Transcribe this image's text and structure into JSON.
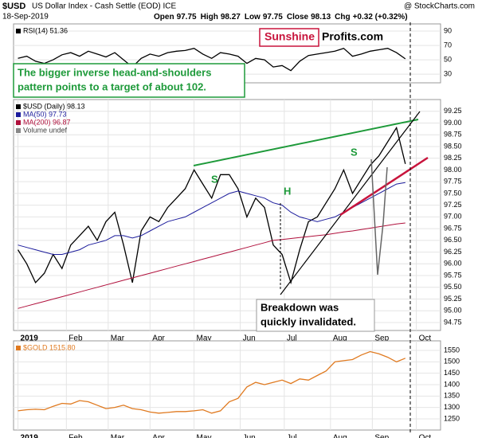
{
  "header": {
    "symbol": "$USD",
    "name": "US Dollar Index - Cash Settle (EOD) ICE",
    "source": "@ StockCharts.com",
    "date": "18-Sep-2019",
    "quote": [
      {
        "label": "Open",
        "value": 97.75
      },
      {
        "label": "High",
        "value": 98.27
      },
      {
        "label": "Low",
        "value": 97.75
      },
      {
        "label": "Close",
        "value": 98.13
      },
      {
        "label": "Chg",
        "value": "+0.32 (+0.32%)"
      }
    ]
  },
  "logo": [
    "Sunshine",
    "Profits.com"
  ],
  "callout": [
    "The bigger inverse head-and-shoulders",
    "pattern points to a target of about 102."
  ],
  "chart_data": [
    {
      "type": "line",
      "xlim": [
        -2,
        192
      ],
      "ylim": [
        18,
        100
      ],
      "yticks": [
        90,
        70,
        50,
        30
      ],
      "grid": true,
      "series": [
        {
          "name": "RSI(14) 51.36",
          "color": "#000000",
          "x": [
            0,
            4,
            8,
            12,
            16,
            20,
            24,
            28,
            32,
            36,
            40,
            44,
            48,
            52,
            56,
            60,
            64,
            68,
            72,
            76,
            80,
            84,
            88,
            92,
            96,
            100,
            104,
            108,
            112,
            116,
            120,
            124,
            128,
            132,
            136,
            140,
            144,
            148,
            152,
            156,
            160,
            164,
            168,
            172,
            176
          ],
          "values": [
            52,
            55,
            48,
            45,
            50,
            57,
            60,
            55,
            62,
            58,
            54,
            60,
            50,
            40,
            52,
            58,
            55,
            60,
            62,
            63,
            66,
            58,
            52,
            60,
            58,
            55,
            45,
            52,
            50,
            40,
            42,
            35,
            48,
            56,
            58,
            60,
            62,
            66,
            55,
            58,
            62,
            64,
            66,
            60,
            51.36
          ]
        }
      ]
    },
    {
      "type": "line",
      "xlim": [
        -2,
        192
      ],
      "ylim": [
        94.58,
        99.5
      ],
      "grid": true,
      "yticks": [
        94.75,
        {
          "value": 95,
          "label": "95.00"
        },
        95.25,
        {
          "value": 95.5,
          "label": "95.50"
        },
        95.75,
        {
          "value": 96,
          "label": "96.00"
        },
        96.25,
        {
          "value": 96.5,
          "label": "96.50"
        },
        96.75,
        {
          "value": 97,
          "label": "97.00"
        },
        97.25,
        {
          "value": 97.5,
          "label": "97.50"
        },
        97.75,
        {
          "value": 98,
          "label": "98.00"
        },
        98.25,
        {
          "value": 98.5,
          "label": "98.50"
        },
        98.75,
        {
          "value": 99,
          "label": "99.00"
        },
        99.25
      ],
      "xticks": [
        {
          "value": 0,
          "label": "2019"
        },
        {
          "value": 22,
          "label": "Feb"
        },
        {
          "value": 41,
          "label": "Mar"
        },
        {
          "value": 60,
          "label": "Apr"
        },
        {
          "value": 80,
          "label": "May"
        },
        {
          "value": 101,
          "label": "Jun"
        },
        {
          "value": 121,
          "label": "Jul"
        },
        {
          "value": 142,
          "label": "Aug"
        },
        {
          "value": 161,
          "label": "Sep"
        },
        {
          "value": 181,
          "label": "Oct"
        }
      ],
      "legend_extra": "Volume undef",
      "annotations": [
        "S",
        "H",
        "S",
        "Breakdown was",
        "quickly invalidated."
      ],
      "series": [
        {
          "name": "$USD (Daily) 98.13",
          "color": "#000000",
          "x": [
            0,
            4,
            8,
            12,
            16,
            20,
            24,
            28,
            32,
            36,
            40,
            44,
            48,
            52,
            56,
            60,
            64,
            68,
            72,
            76,
            80,
            84,
            88,
            92,
            96,
            100,
            104,
            108,
            112,
            116,
            120,
            124,
            128,
            132,
            136,
            140,
            144,
            148,
            152,
            156,
            160,
            164,
            168,
            172,
            176
          ],
          "values": [
            96.3,
            96.0,
            95.6,
            95.8,
            96.2,
            95.9,
            96.4,
            96.6,
            96.8,
            96.5,
            96.9,
            97.1,
            96.4,
            95.6,
            96.7,
            97.0,
            96.9,
            97.2,
            97.4,
            97.6,
            98.0,
            97.7,
            97.4,
            97.9,
            97.9,
            97.6,
            97.0,
            97.4,
            97.2,
            96.4,
            96.2,
            95.6,
            96.3,
            96.9,
            97.0,
            97.3,
            97.6,
            98.0,
            97.5,
            97.8,
            98.1,
            98.3,
            98.6,
            98.9,
            98.13
          ]
        },
        {
          "name": "MA(50) 97.73",
          "color": "#1c1c9c",
          "x": [
            0,
            4,
            8,
            12,
            16,
            20,
            24,
            28,
            32,
            36,
            40,
            44,
            48,
            52,
            56,
            60,
            64,
            68,
            72,
            76,
            80,
            84,
            88,
            92,
            96,
            100,
            104,
            108,
            112,
            116,
            120,
            124,
            128,
            132,
            136,
            140,
            144,
            148,
            152,
            156,
            160,
            164,
            168,
            172,
            176
          ],
          "values": [
            96.4,
            96.35,
            96.3,
            96.25,
            96.2,
            96.2,
            96.25,
            96.3,
            96.4,
            96.45,
            96.5,
            96.6,
            96.6,
            96.55,
            96.6,
            96.7,
            96.8,
            96.9,
            96.95,
            97.0,
            97.1,
            97.2,
            97.3,
            97.4,
            97.5,
            97.55,
            97.5,
            97.45,
            97.4,
            97.3,
            97.25,
            97.1,
            97.0,
            96.95,
            96.9,
            96.95,
            97.0,
            97.1,
            97.2,
            97.3,
            97.4,
            97.5,
            97.6,
            97.7,
            97.73
          ]
        },
        {
          "name": "MA(200) 96.87",
          "color": "#b0103c",
          "x": [
            0,
            4,
            8,
            12,
            16,
            20,
            24,
            28,
            32,
            36,
            40,
            44,
            48,
            52,
            56,
            60,
            64,
            68,
            72,
            76,
            80,
            84,
            88,
            92,
            96,
            100,
            104,
            108,
            112,
            116,
            120,
            124,
            128,
            132,
            136,
            140,
            144,
            148,
            152,
            156,
            160,
            164,
            168,
            172,
            176
          ],
          "values": [
            95.05,
            95.1,
            95.15,
            95.2,
            95.25,
            95.3,
            95.35,
            95.4,
            95.45,
            95.5,
            95.55,
            95.6,
            95.65,
            95.7,
            95.75,
            95.8,
            95.85,
            95.9,
            95.95,
            96.0,
            96.05,
            96.1,
            96.15,
            96.2,
            96.25,
            96.3,
            96.35,
            96.4,
            96.45,
            96.5,
            96.52,
            96.54,
            96.56,
            96.58,
            96.6,
            96.62,
            96.65,
            96.68,
            96.7,
            96.73,
            96.76,
            96.79,
            96.82,
            96.85,
            96.87
          ]
        }
      ]
    },
    {
      "type": "line",
      "xlim": [
        -2,
        192
      ],
      "ylim": [
        1201,
        1592
      ],
      "yticks": [
        1250,
        1300,
        1350,
        1400,
        1450,
        1500,
        1550
      ],
      "grid": true,
      "xticks": [
        {
          "value": 0,
          "label": "2019"
        },
        {
          "value": 22,
          "label": "Feb"
        },
        {
          "value": 41,
          "label": "Mar"
        },
        {
          "value": 60,
          "label": "Apr"
        },
        {
          "value": 80,
          "label": "May"
        },
        {
          "value": 101,
          "label": "Jun"
        },
        {
          "value": 121,
          "label": "Jul"
        },
        {
          "value": 142,
          "label": "Aug"
        },
        {
          "value": 161,
          "label": "Sep"
        },
        {
          "value": 181,
          "label": "Oct"
        }
      ],
      "series": [
        {
          "name": "$GOLD 1515.80",
          "color": "#e07a20",
          "x": [
            0,
            4,
            8,
            12,
            16,
            20,
            24,
            28,
            32,
            36,
            40,
            44,
            48,
            52,
            56,
            60,
            64,
            68,
            72,
            76,
            80,
            84,
            88,
            92,
            96,
            100,
            104,
            108,
            112,
            116,
            120,
            124,
            128,
            132,
            136,
            140,
            144,
            148,
            152,
            156,
            160,
            164,
            168,
            172,
            176
          ],
          "values": [
            1285,
            1290,
            1292,
            1290,
            1305,
            1318,
            1315,
            1330,
            1325,
            1310,
            1295,
            1300,
            1310,
            1295,
            1290,
            1280,
            1275,
            1278,
            1282,
            1282,
            1285,
            1290,
            1275,
            1285,
            1325,
            1340,
            1390,
            1410,
            1400,
            1410,
            1420,
            1405,
            1425,
            1420,
            1440,
            1460,
            1500,
            1505,
            1510,
            1530,
            1545,
            1535,
            1520,
            1500,
            1515.8
          ]
        }
      ]
    }
  ]
}
